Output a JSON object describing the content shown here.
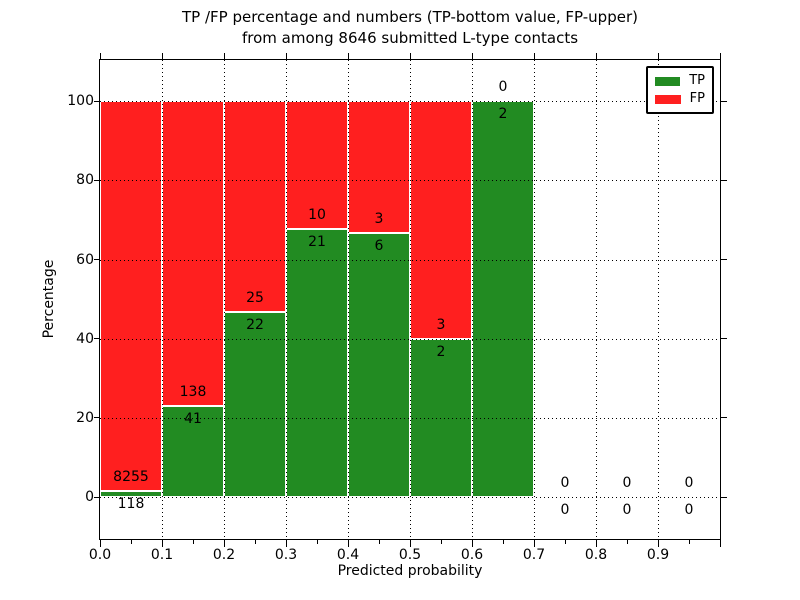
{
  "title": {
    "line1": "TP /FP percentage and numbers (TP-bottom value, FP-upper)",
    "line2": "from among 8646 submitted L-type contacts"
  },
  "chart_data": {
    "type": "bar",
    "stacked": true,
    "normalized_to_percent": true,
    "title": "TP /FP percentage and numbers (TP-bottom value, FP-upper) from among 8646 submitted L-type contacts",
    "xlabel": "Predicted probability",
    "ylabel": "Percentage",
    "xlim": [
      0.0,
      1.0
    ],
    "ylim": [
      -10.6,
      110.4
    ],
    "grid": true,
    "grid_style": "dotted",
    "bar_edge_color": "#ffffff",
    "legend_position": "upper right",
    "legend_entries": [
      "TP",
      "FP"
    ],
    "bin_edges": [
      0.0,
      0.1,
      0.2,
      0.3,
      0.4,
      0.5,
      0.6,
      0.7,
      0.8,
      0.9,
      1.0
    ],
    "xtick_labels": [
      "0.0",
      "0.1",
      "0.2",
      "0.3",
      "0.4",
      "0.5",
      "0.6",
      "0.7",
      "0.8",
      "0.9"
    ],
    "yticks": [
      0,
      20,
      40,
      60,
      80,
      100
    ],
    "series": [
      {
        "name": "TP",
        "color": "#228b22",
        "values": [
          118,
          41,
          22,
          21,
          6,
          2,
          2,
          0,
          0,
          0
        ]
      },
      {
        "name": "FP",
        "color": "#ff1f1f",
        "values": [
          8255,
          138,
          25,
          10,
          3,
          3,
          0,
          0,
          0,
          0
        ]
      }
    ],
    "tp_percent_by_bin": [
      1.41,
      22.91,
      46.81,
      67.74,
      66.67,
      40.0,
      100.0,
      0.0,
      0.0,
      0.0
    ],
    "total_contacts": 8646
  }
}
